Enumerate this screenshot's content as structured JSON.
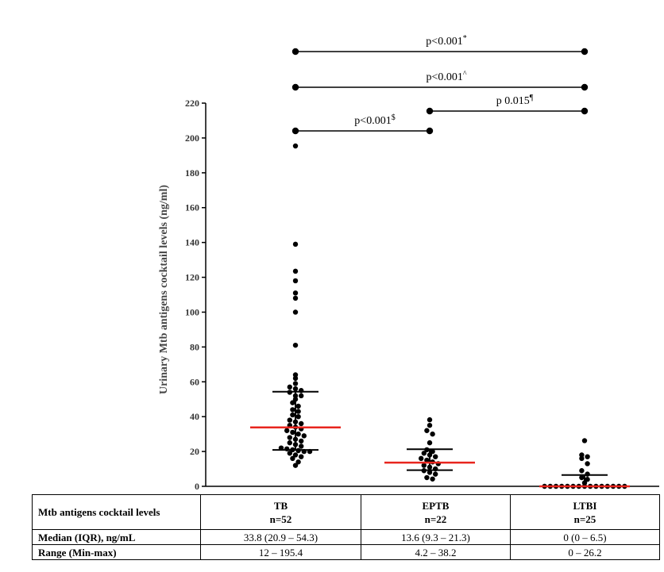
{
  "chart_data": {
    "type": "scatter",
    "title": "",
    "ylabel": "Urinary Mtb antigens cocktail levels (ng/ml)",
    "ylim": [
      0,
      220
    ],
    "yticks": [
      0,
      20,
      40,
      60,
      80,
      100,
      120,
      140,
      160,
      180,
      200,
      220
    ],
    "categories": [
      "TB",
      "EPTB",
      "LTBI"
    ],
    "series": [
      {
        "group": "TB",
        "median": 33.8,
        "iqr": [
          20.9,
          54.3
        ],
        "points": [
          195.4,
          139,
          123.5,
          118,
          111,
          108,
          100,
          81,
          64,
          62,
          59,
          57,
          56,
          55,
          54,
          52,
          52,
          50,
          48,
          46,
          44,
          43,
          41,
          40,
          38,
          37,
          36,
          35,
          34,
          33,
          32,
          31,
          30,
          29,
          28,
          27,
          26,
          25,
          24,
          23,
          22,
          21.5,
          21,
          20.5,
          20,
          20,
          19,
          18,
          17,
          16,
          14,
          12
        ]
      },
      {
        "group": "EPTB",
        "median": 13.6,
        "iqr": [
          9.3,
          21.3
        ],
        "points": [
          38.2,
          35,
          32,
          30,
          25,
          21,
          20,
          19,
          18,
          17,
          16,
          15,
          14,
          13,
          12,
          11,
          10,
          9,
          8,
          7,
          5,
          4.2
        ]
      },
      {
        "group": "LTBI",
        "median": 0,
        "iqr": [
          0,
          6.5
        ],
        "points": [
          26.2,
          18,
          17,
          16,
          13,
          9,
          7,
          5,
          4,
          2,
          0,
          0,
          0,
          0,
          0,
          0,
          0,
          0,
          0,
          0,
          0,
          0,
          0,
          0,
          0
        ]
      }
    ],
    "comparisons": [
      {
        "from": "TB",
        "to": "LTBI",
        "label": "p<0.001",
        "mark": "*"
      },
      {
        "from": "TB",
        "to": "LTBI",
        "label": "p<0.001",
        "mark": "^"
      },
      {
        "from": "EPTB",
        "to": "LTBI",
        "label": "p 0.015",
        "mark": "¶"
      },
      {
        "from": "TB",
        "to": "EPTB",
        "label": "p<0.001",
        "mark": "$"
      }
    ],
    "colors": {
      "median": "#e8251e",
      "iqr": "#000000",
      "points": "#000000"
    }
  },
  "table": {
    "header_label": "Mtb antigens cocktail levels",
    "columns": [
      {
        "name": "TB",
        "n": "n=52"
      },
      {
        "name": "EPTB",
        "n": "n=22"
      },
      {
        "name": "LTBI",
        "n": "n=25"
      }
    ],
    "rows": [
      {
        "label": "Median (IQR), ng/mL",
        "values": [
          "33.8 (20.9 – 54.3)",
          "13.6 (9.3 – 21.3)",
          "0 (0 – 6.5)"
        ]
      },
      {
        "label": "Range (Min-max)",
        "values": [
          "12 – 195.4",
          "4.2 – 38.2",
          "0 – 26.2"
        ]
      }
    ]
  }
}
